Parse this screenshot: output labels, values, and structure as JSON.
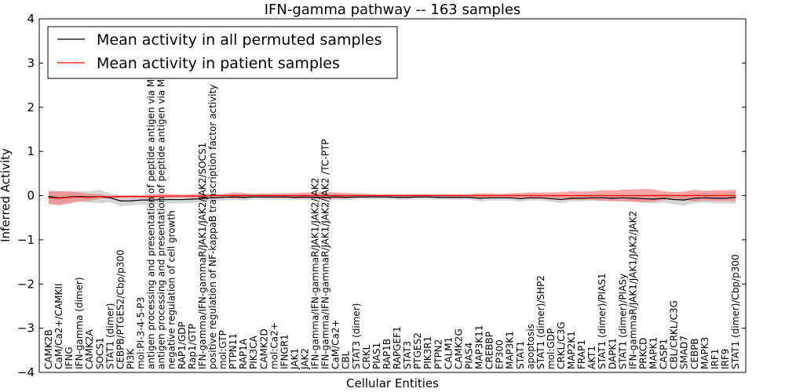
{
  "chart_data": {
    "type": "line",
    "title": "IFN-gamma pathway -- 163 samples",
    "xlabel": "Cellular Entities",
    "ylabel": "Inferred Activity",
    "ylim": [
      -4,
      4
    ],
    "yticks": [
      -4,
      -3,
      -2,
      -1,
      0,
      1,
      2,
      3,
      4
    ],
    "ytick_labels": [
      "−4",
      "−3",
      "−2",
      "−1",
      "0",
      "1",
      "2",
      "3",
      "4"
    ],
    "legend_position": "top-left",
    "categories": [
      "CAMK2B",
      "CaM/Ca2+/CAMKII",
      "IFNG",
      "IFN-gamma (dimer)",
      "CAMK2A",
      "SOCS1",
      "STAT1 (dimer)",
      "CEBPB/PTGES2/Cbp/p300",
      "PI3K",
      "mol:PI-3-4-5-P3",
      "antigen processing and presentation of peptide antigen via MHC class I",
      "antigen processing and presentation of peptide antigen via MHC class II",
      "negative regulation of cell growth",
      "RAP1/GDP",
      "Rap1/GTP",
      "IFN-gamma/IFN-gammaR/JAK1/JAK2/JAK2/SOCS1",
      "positive regulation of NF-kappaB transcription factor activity",
      "mol:GTP",
      "PTPN11",
      "RAP1A",
      "PIK3CA",
      "CAMK2D",
      "mol:Ca2+",
      "IFNGR1",
      "JAK1",
      "JAK2",
      "IFN-gamma/IFN-gammaR/JAK1/JAK2/JAK2",
      "IFN-gamma/IFN-gammaR/JAK1/JAK2/JAK2 /TC-PTP",
      "CaM/Ca2+",
      "CBL",
      "STAT3 (dimer)",
      "CRKL",
      "PIAS1",
      "RAP1B",
      "RAPGEF1",
      "STAT3",
      "PTGES2",
      "PIK3R1",
      "PTPN2",
      "CALM1",
      "CAMK2G",
      "PIAS4",
      "MAP3K11",
      "CREBBP",
      "EP300",
      "MAP3K1",
      "STAT1",
      "apoptosis",
      "STAT1 (dimer)/SHP2",
      "mol:GDP",
      "CRKL/C3G",
      "MAP2K1",
      "FRAP1",
      "AKT1",
      "STAT1 (dimer)/PIAS1",
      "DAPK1",
      "STAT1 (dimer)/PIASy",
      "IFN-gammaR/JAK1/JAK1/JAK2/JAK2",
      "PRKCD",
      "MAPK1",
      "CASP1",
      "CBL/CRKL/C3G",
      "SMAD7",
      "CEBPB",
      "MAPK3",
      "IRF1",
      "IRF9",
      "STAT1 (dimer)/Cbp/p300"
    ],
    "series": [
      {
        "name": "Mean activity in all permuted samples",
        "color": "#000000",
        "band_color": "#c8c8c8",
        "values": [
          -0.02,
          -0.05,
          -0.03,
          -0.02,
          -0.03,
          -0.02,
          -0.05,
          -0.12,
          -0.12,
          -0.1,
          -0.1,
          -0.09,
          -0.09,
          -0.09,
          -0.08,
          -0.07,
          -0.05,
          -0.04,
          -0.03,
          -0.04,
          -0.03,
          -0.03,
          -0.03,
          -0.03,
          -0.04,
          -0.03,
          -0.04,
          -0.04,
          -0.03,
          -0.04,
          -0.03,
          -0.03,
          -0.03,
          -0.03,
          -0.04,
          -0.04,
          -0.03,
          -0.03,
          -0.04,
          -0.04,
          -0.04,
          -0.04,
          -0.06,
          -0.05,
          -0.05,
          -0.05,
          -0.07,
          -0.05,
          -0.05,
          -0.07,
          -0.09,
          -0.06,
          -0.06,
          -0.05,
          -0.05,
          -0.06,
          -0.05,
          -0.06,
          -0.07,
          -0.08,
          -0.06,
          -0.09,
          -0.1,
          -0.06,
          -0.05,
          -0.06,
          -0.06,
          -0.04
        ],
        "spread": [
          0.14,
          0.14,
          0.12,
          0.12,
          0.13,
          0.15,
          0.1,
          0.12,
          0.1,
          0.1,
          0.1,
          0.09,
          0.09,
          0.09,
          0.09,
          0.08,
          0.08,
          0.07,
          0.07,
          0.07,
          0.06,
          0.06,
          0.06,
          0.06,
          0.06,
          0.06,
          0.06,
          0.06,
          0.06,
          0.06,
          0.05,
          0.05,
          0.05,
          0.05,
          0.05,
          0.05,
          0.05,
          0.05,
          0.05,
          0.05,
          0.05,
          0.05,
          0.07,
          0.06,
          0.06,
          0.06,
          0.07,
          0.06,
          0.06,
          0.07,
          0.08,
          0.07,
          0.07,
          0.07,
          0.07,
          0.07,
          0.07,
          0.08,
          0.09,
          0.1,
          0.1,
          0.11,
          0.12,
          0.11,
          0.11,
          0.12,
          0.12,
          0.14
        ]
      },
      {
        "name": "Mean activity in patient samples",
        "color": "#ff0000",
        "band_color": "#f08080",
        "values": [
          -0.05,
          -0.06,
          -0.04,
          -0.03,
          -0.04,
          -0.02,
          -0.03,
          -0.02,
          -0.02,
          -0.02,
          -0.02,
          -0.01,
          -0.01,
          -0.01,
          -0.01,
          -0.01,
          0.0,
          0.0,
          0.0,
          0.0,
          0.0,
          0.0,
          0.0,
          0.0,
          0.0,
          0.0,
          0.0,
          0.0,
          0.0,
          0.0,
          0.0,
          0.0,
          0.0,
          0.0,
          0.0,
          0.0,
          0.0,
          0.0,
          0.0,
          0.0,
          0.0,
          0.0,
          0.0,
          0.0,
          0.0,
          0.0,
          0.0,
          0.0,
          0.0,
          0.0,
          0.0,
          0.0,
          0.0,
          0.0,
          0.0,
          0.0,
          0.0,
          0.0,
          0.0,
          0.0,
          0.0,
          0.0,
          0.0,
          0.0,
          0.0,
          0.0,
          0.0,
          0.0
        ],
        "spread": [
          0.14,
          0.16,
          0.14,
          0.1,
          0.08,
          0.05,
          0.03,
          0.03,
          0.03,
          0.03,
          0.05,
          0.05,
          0.04,
          0.03,
          0.04,
          0.05,
          0.04,
          0.03,
          0.07,
          0.06,
          0.04,
          0.05,
          0.05,
          0.05,
          0.06,
          0.07,
          0.07,
          0.08,
          0.07,
          0.06,
          0.05,
          0.04,
          0.03,
          0.03,
          0.03,
          0.03,
          0.03,
          0.03,
          0.03,
          0.03,
          0.03,
          0.03,
          0.05,
          0.05,
          0.04,
          0.05,
          0.06,
          0.07,
          0.07,
          0.07,
          0.08,
          0.1,
          0.09,
          0.1,
          0.12,
          0.12,
          0.13,
          0.14,
          0.15,
          0.14,
          0.1,
          0.08,
          0.09,
          0.13,
          0.11,
          0.12,
          0.12,
          0.13
        ]
      }
    ]
  }
}
